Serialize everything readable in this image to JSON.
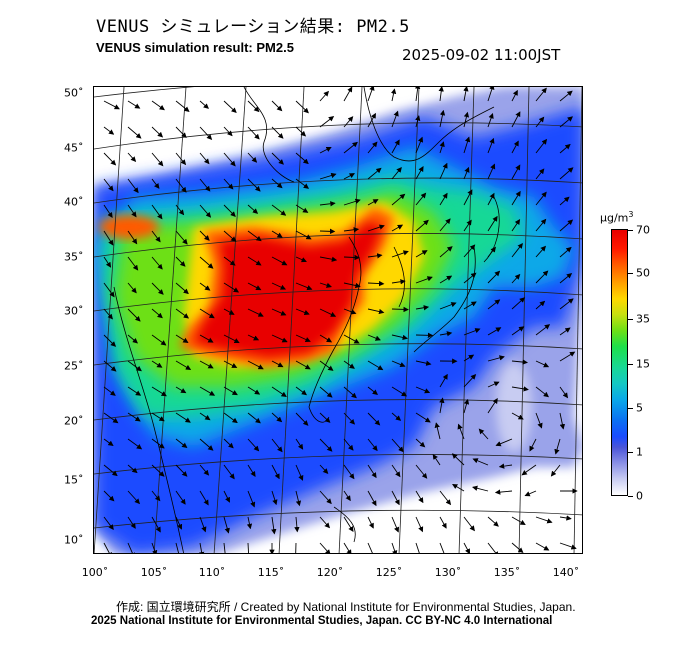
{
  "header": {
    "title_ja": "VENUS シミュレーション結果: PM2.5",
    "title_en": "VENUS simulation result: PM2.5",
    "timestamp": "2025-09-02 11:00JST"
  },
  "map": {
    "x_ticks": [
      "100˚",
      "105˚",
      "110˚",
      "115˚",
      "120˚",
      "125˚",
      "130˚",
      "135˚",
      "140˚"
    ],
    "y_ticks": [
      "50˚",
      "45˚",
      "40˚",
      "35˚",
      "30˚",
      "25˚",
      "20˚",
      "15˚",
      "10˚"
    ],
    "layers": [
      "pm25-concentration-field",
      "wind-vector-arrows",
      "coastlines",
      "lat-lon-graticule"
    ]
  },
  "colorbar": {
    "unit_base": "µg/m",
    "unit_exp": "3",
    "ticks": [
      "70",
      "50",
      "35",
      "15",
      "5",
      "1",
      "0"
    ],
    "colors": [
      "#ffffff",
      "#8a90e6",
      "#1a4bff",
      "#0aa8e8",
      "#18d896",
      "#6de016",
      "#ffd800",
      "#ff5a00",
      "#e80000"
    ]
  },
  "footer": {
    "credit": "作成: 国立環境研究所 / Created by National Institute for Environmental Studies, Japan.",
    "copyright": "2025 National Institute for Environmental Studies, Japan. CC BY-NC 4.0 International"
  }
}
